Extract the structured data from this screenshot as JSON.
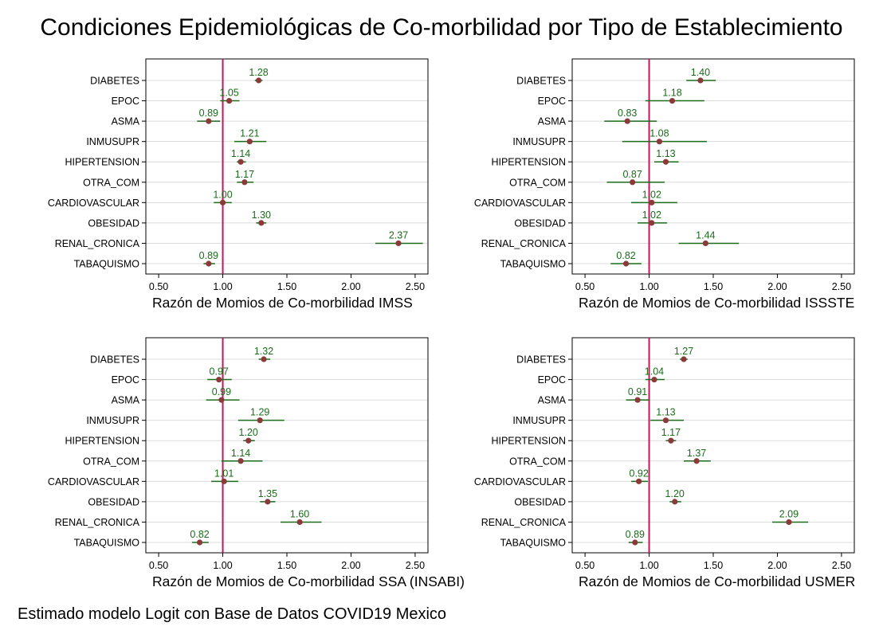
{
  "title": "Condiciones Epidemiológicas de Co-morbilidad por Tipo de Establecimiento",
  "note": "Estimado modelo Logit con Base de Datos COVID19 Mexico",
  "colors": {
    "point": "#8b3a3a",
    "ci": "#1a6b1a",
    "label": "#1a6b1a",
    "refline": "#c2185b",
    "grid": "#dcdcdc",
    "axis": "#000000"
  },
  "chart_data": [
    {
      "type": "scatter",
      "xlabel": "Razón de Momios de Co-morbilidad IMSS",
      "categories": [
        "DIABETES",
        "EPOC",
        "ASMA",
        "INMUSUPR",
        "HIPERTENSION",
        "OTRA_COM",
        "CARDIOVASCULAR",
        "OBESIDAD",
        "RENAL_CRONICA",
        "TABAQUISMO"
      ],
      "values": [
        1.28,
        1.05,
        0.89,
        1.21,
        1.14,
        1.17,
        1.0,
        1.3,
        2.37,
        0.89
      ],
      "value_labels": [
        "1.28",
        "1.05",
        "0.89",
        "1.21",
        "1.14",
        "1.17",
        "1.00",
        "1.30",
        "2.37",
        "0.89"
      ],
      "ci_low": [
        1.25,
        0.98,
        0.8,
        1.09,
        1.11,
        1.11,
        0.93,
        1.26,
        2.19,
        0.85
      ],
      "ci_high": [
        1.31,
        1.13,
        0.98,
        1.34,
        1.18,
        1.24,
        1.07,
        1.34,
        2.56,
        0.94
      ],
      "xlim": [
        0.4,
        2.6
      ],
      "xticks": [
        0.5,
        1.0,
        1.5,
        2.0,
        2.5
      ],
      "xtick_labels": [
        "0.50",
        "1.00",
        "1.50",
        "2.00",
        "2.50"
      ],
      "reference_line": 1.0,
      "grid": true
    },
    {
      "type": "scatter",
      "xlabel": "Razón de Momios de Co-morbilidad ISSSTE",
      "categories": [
        "DIABETES",
        "EPOC",
        "ASMA",
        "INMUSUPR",
        "HIPERTENSION",
        "OTRA_COM",
        "CARDIOVASCULAR",
        "OBESIDAD",
        "RENAL_CRONICA",
        "TABAQUISMO"
      ],
      "values": [
        1.4,
        1.18,
        0.83,
        1.08,
        1.13,
        0.87,
        1.02,
        1.02,
        1.44,
        0.82
      ],
      "value_labels": [
        "1.40",
        "1.18",
        "0.83",
        "1.08",
        "1.13",
        "0.87",
        "1.02",
        "1.02",
        "1.44",
        "0.82"
      ],
      "ci_low": [
        1.29,
        0.97,
        0.65,
        0.79,
        1.04,
        0.67,
        0.86,
        0.91,
        1.23,
        0.7
      ],
      "ci_high": [
        1.52,
        1.43,
        1.06,
        1.45,
        1.23,
        1.12,
        1.22,
        1.14,
        1.7,
        0.94
      ],
      "xlim": [
        0.4,
        2.6
      ],
      "xticks": [
        0.5,
        1.0,
        1.5,
        2.0,
        2.5
      ],
      "xtick_labels": [
        "0.50",
        "1.00",
        "1.50",
        "2.00",
        "2.50"
      ],
      "reference_line": 1.0,
      "grid": true
    },
    {
      "type": "scatter",
      "xlabel": "Razón de Momios de Co-morbilidad SSA (INSABI)",
      "categories": [
        "DIABETES",
        "EPOC",
        "ASMA",
        "INMUSUPR",
        "HIPERTENSION",
        "OTRA_COM",
        "CARDIOVASCULAR",
        "OBESIDAD",
        "RENAL_CRONICA",
        "TABAQUISMO"
      ],
      "values": [
        1.32,
        0.97,
        0.99,
        1.29,
        1.2,
        1.14,
        1.01,
        1.35,
        1.6,
        0.82
      ],
      "value_labels": [
        "1.32",
        "0.97",
        "0.99",
        "1.29",
        "1.20",
        "1.14",
        "1.01",
        "1.35",
        "1.60",
        "0.82"
      ],
      "ci_low": [
        1.28,
        0.88,
        0.87,
        1.12,
        1.16,
        0.99,
        0.91,
        1.29,
        1.45,
        0.76
      ],
      "ci_high": [
        1.37,
        1.07,
        1.13,
        1.48,
        1.25,
        1.31,
        1.12,
        1.41,
        1.77,
        0.89
      ],
      "xlim": [
        0.4,
        2.6
      ],
      "xticks": [
        0.5,
        1.0,
        1.5,
        2.0,
        2.5
      ],
      "xtick_labels": [
        "0.50",
        "1.00",
        "1.50",
        "2.00",
        "2.50"
      ],
      "reference_line": 1.0,
      "grid": true
    },
    {
      "type": "scatter",
      "xlabel": "Razón de Momios de Co-morbilidad USMER",
      "categories": [
        "DIABETES",
        "EPOC",
        "ASMA",
        "INMUSUPR",
        "HIPERTENSION",
        "OTRA_COM",
        "CARDIOVASCULAR",
        "OBESIDAD",
        "RENAL_CRONICA",
        "TABAQUISMO"
      ],
      "values": [
        1.27,
        1.04,
        0.91,
        1.13,
        1.17,
        1.37,
        0.92,
        1.2,
        2.09,
        0.89
      ],
      "value_labels": [
        "1.27",
        "1.04",
        "0.91",
        "1.13",
        "1.17",
        "1.37",
        "0.92",
        "1.20",
        "2.09",
        "0.89"
      ],
      "ci_low": [
        1.24,
        0.97,
        0.82,
        1.01,
        1.13,
        1.27,
        0.86,
        1.16,
        1.96,
        0.84
      ],
      "ci_high": [
        1.3,
        1.12,
        1.0,
        1.27,
        1.21,
        1.48,
        0.99,
        1.25,
        2.24,
        0.95
      ],
      "xlim": [
        0.4,
        2.6
      ],
      "xticks": [
        0.5,
        1.0,
        1.5,
        2.0,
        2.5
      ],
      "xtick_labels": [
        "0.50",
        "1.00",
        "1.50",
        "2.00",
        "2.50"
      ],
      "reference_line": 1.0,
      "grid": true
    }
  ]
}
